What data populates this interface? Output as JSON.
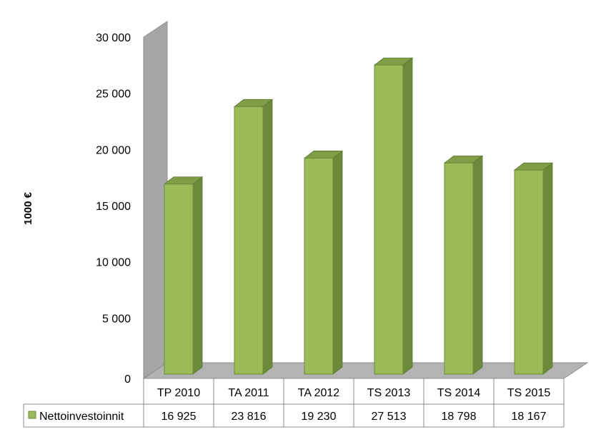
{
  "chart_data": {
    "type": "bar",
    "ylabel": "1000 €",
    "yticks": [
      "0",
      "5 000",
      "10 000",
      "15 000",
      "20 000",
      "25 000",
      "30 000"
    ],
    "ylim": [
      0,
      30000
    ],
    "categories": [
      "TP 2010",
      "TA 2011",
      "TA 2012",
      "TS 2013",
      "TS 2014",
      "TS 2015"
    ],
    "series": [
      {
        "name": "Nettoinvestoinnit",
        "values": [
          16925,
          23816,
          19230,
          27513,
          18798,
          18167
        ],
        "labels": [
          "16 925",
          "23 816",
          "19 230",
          "27 513",
          "18 798",
          "18 167"
        ],
        "color": "#9bbb59"
      }
    ],
    "grid": false,
    "legend": "data-table",
    "style": "3d-column-with-data-table"
  }
}
